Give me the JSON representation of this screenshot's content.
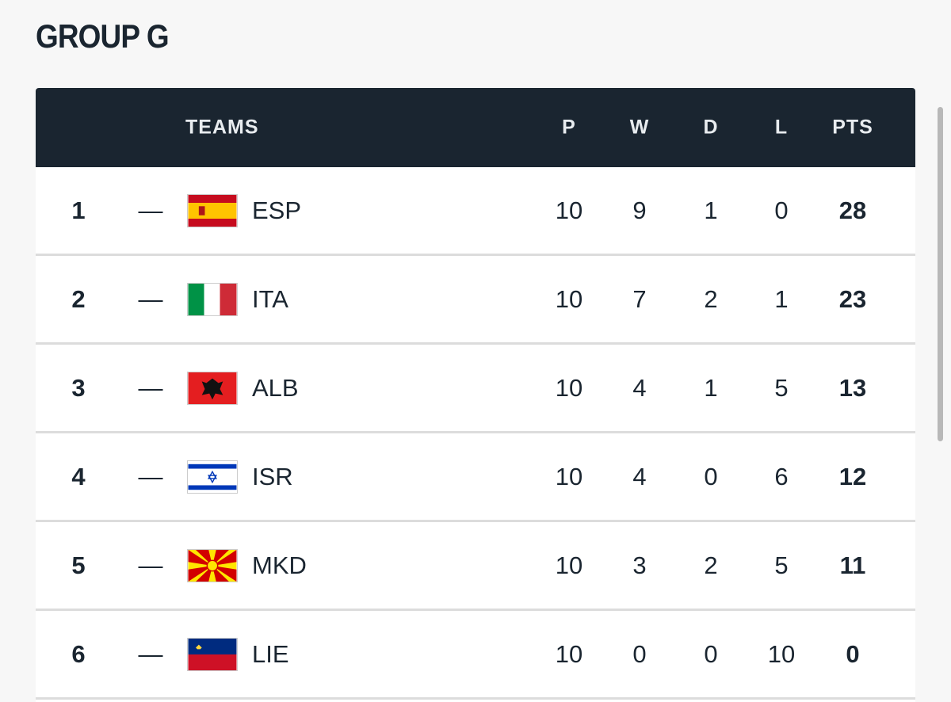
{
  "header": {
    "title": "GROUP G"
  },
  "table": {
    "columns": [
      "TEAMS",
      "P",
      "W",
      "D",
      "L",
      "PTS"
    ],
    "rows": [
      [
        1,
        "—",
        "ESP",
        10,
        9,
        1,
        0,
        28
      ],
      [
        2,
        "—",
        "ITA",
        10,
        7,
        2,
        1,
        23
      ],
      [
        3,
        "—",
        "ALB",
        10,
        4,
        1,
        5,
        13
      ],
      [
        4,
        "—",
        "ISR",
        10,
        4,
        0,
        6,
        12
      ],
      [
        5,
        "—",
        "MKD",
        10,
        3,
        2,
        5,
        11
      ],
      [
        6,
        "—",
        "LIE",
        10,
        0,
        0,
        10,
        0
      ]
    ]
  }
}
